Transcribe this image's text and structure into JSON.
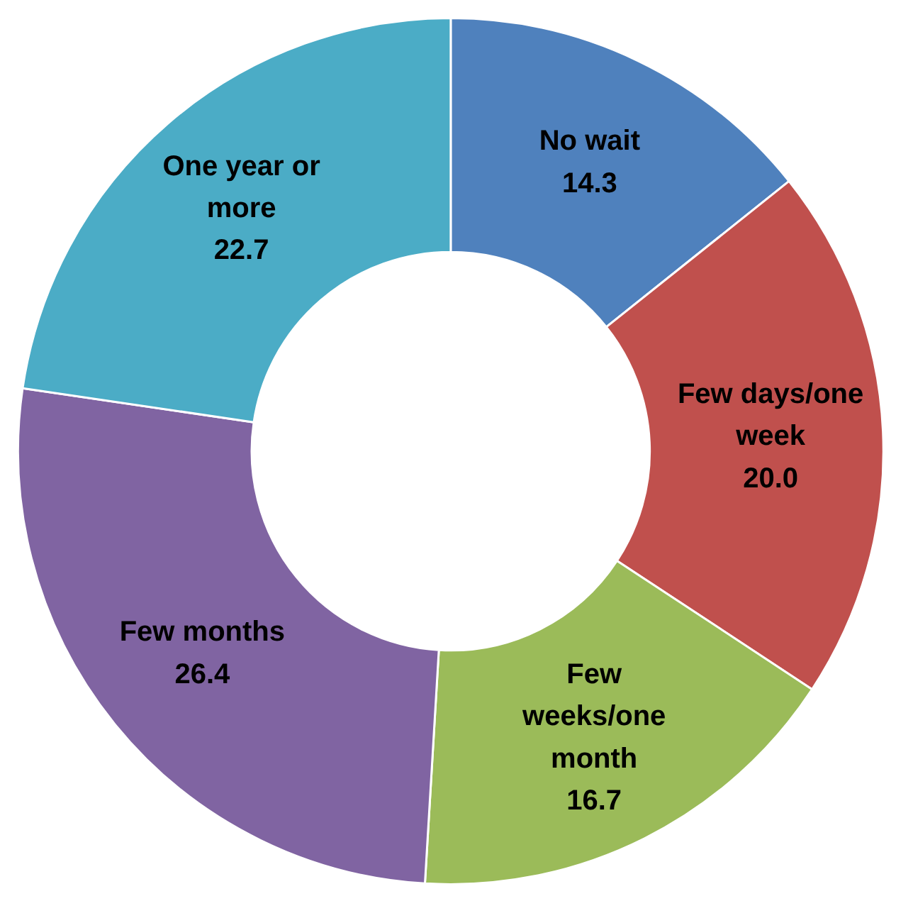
{
  "chart_data": {
    "type": "donut",
    "categories": [
      "No wait",
      "Few days/one week",
      "Few weeks/one month",
      "Few months",
      "One year or more"
    ],
    "values": [
      14.3,
      20.0,
      16.7,
      26.4,
      22.7
    ],
    "value_labels": [
      "14.3",
      "20.0",
      "16.7",
      "26.4",
      "22.7"
    ],
    "colors": [
      "#4f81bd",
      "#c0504d",
      "#9bbb59",
      "#8064a2",
      "#4bacc6"
    ]
  }
}
